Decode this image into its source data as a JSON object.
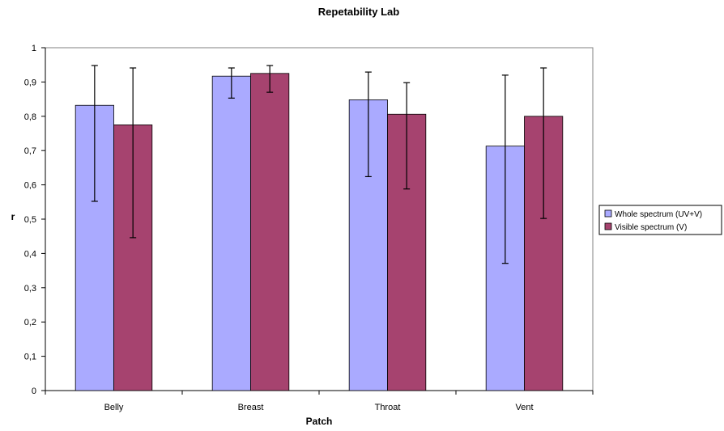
{
  "chart_data": {
    "type": "bar",
    "title": "Repetability Lab",
    "xlabel": "Patch",
    "ylabel": "r",
    "categories": [
      "Belly",
      "Breast",
      "Throat",
      "Vent"
    ],
    "ylim": [
      0,
      1
    ],
    "ytick_labels": [
      "0",
      "0,1",
      "0,2",
      "0,3",
      "0,4",
      "0,5",
      "0,6",
      "0,7",
      "0,8",
      "0,9",
      "1"
    ],
    "grid": false,
    "legend_position": "right",
    "series": [
      {
        "name": "Whole spectrum (UV+V)",
        "color": "#aaaaff",
        "values": [
          0.832,
          0.917,
          0.848,
          0.713
        ],
        "error_low": [
          0.552,
          0.853,
          0.624,
          0.371
        ],
        "error_high": [
          0.948,
          0.941,
          0.929,
          0.92
        ]
      },
      {
        "name": "Visible spectrum (V)",
        "color": "#a6436f",
        "values": [
          0.775,
          0.925,
          0.806,
          0.8
        ],
        "error_low": [
          0.446,
          0.87,
          0.588,
          0.502
        ],
        "error_high": [
          0.941,
          0.948,
          0.898,
          0.941
        ]
      }
    ]
  }
}
